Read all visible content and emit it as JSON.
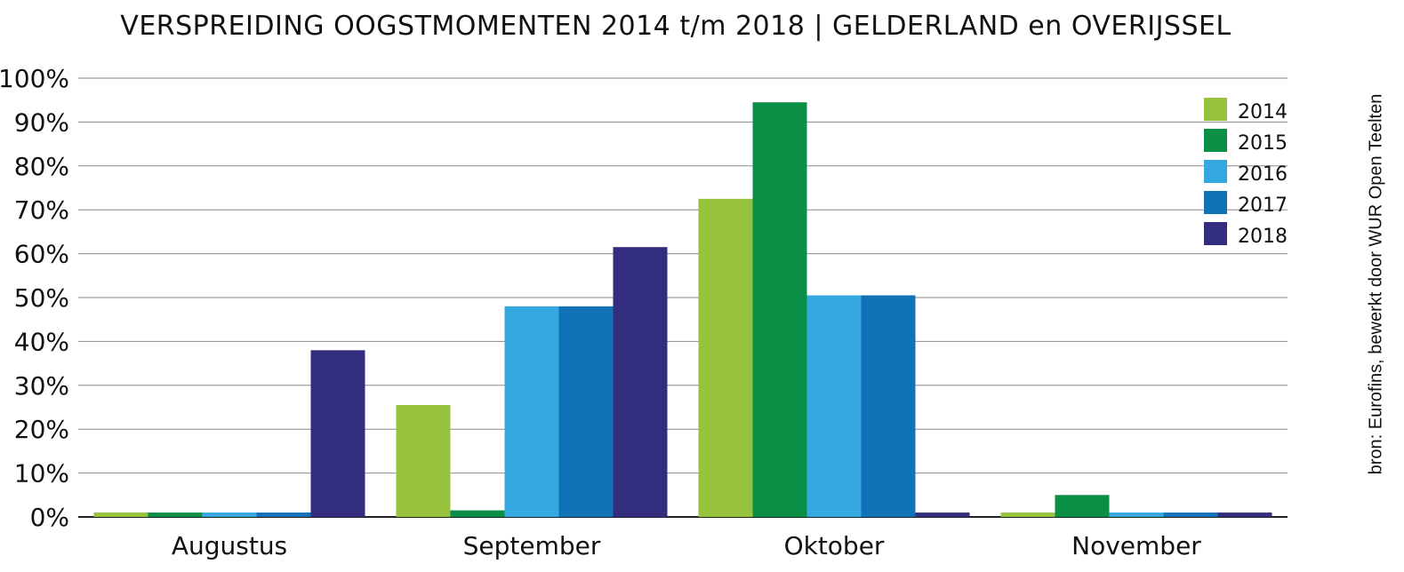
{
  "chart_data": {
    "type": "bar",
    "title": "VERSPREIDING OOGSTMOMENTEN 2014 t/m 2018 | GELDERLAND en OVERIJSSEL",
    "source": "bron: Eurofins, bewerkt door WUR Open Teelten",
    "categories": [
      "Augustus",
      "September",
      "Oktober",
      "November"
    ],
    "series": [
      {
        "name": "2014",
        "color": "#97c23d",
        "values": [
          1,
          25.5,
          72.5,
          1
        ]
      },
      {
        "name": "2015",
        "color": "#0a8f47",
        "values": [
          1,
          1.5,
          94.5,
          5
        ]
      },
      {
        "name": "2016",
        "color": "#35a8e0",
        "values": [
          1,
          48,
          50.5,
          1
        ]
      },
      {
        "name": "2017",
        "color": "#1172b8",
        "values": [
          1,
          48,
          50.5,
          1
        ]
      },
      {
        "name": "2018",
        "color": "#322d7d",
        "values": [
          38,
          61.5,
          1,
          1
        ]
      }
    ],
    "ylim": [
      0,
      100
    ],
    "yticks": [
      "0%",
      "10%",
      "20%",
      "30%",
      "40%",
      "50%",
      "60%",
      "70%",
      "80%",
      "90%",
      "100%"
    ],
    "grid": true,
    "legend": "top-right"
  }
}
